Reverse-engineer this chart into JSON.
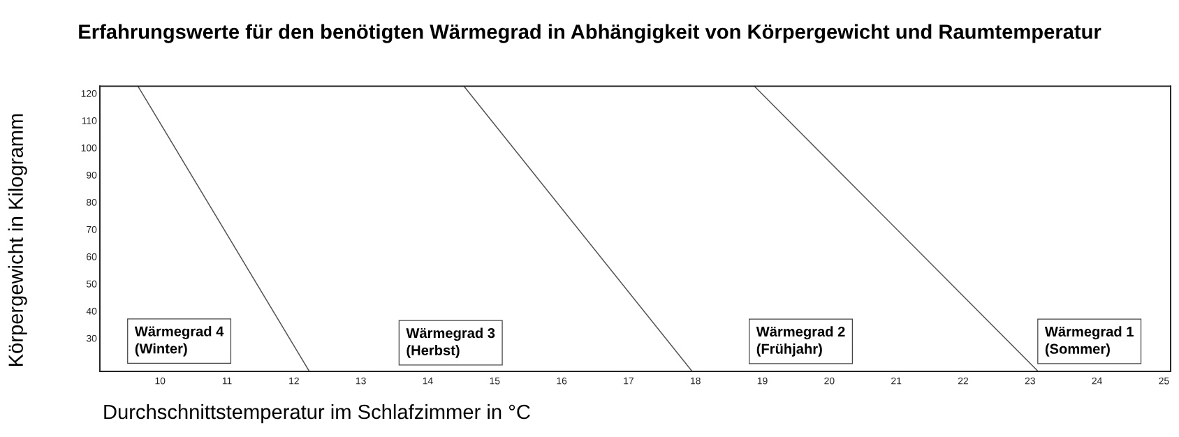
{
  "chart_data": {
    "type": "line",
    "title": "Erfahrungswerte für den benötigten Wärmegrad in Abhängigkeit von Körpergewicht und Raumtemperatur",
    "xlabel": "Durchschnittstemperatur im Schlafzimmer in °C",
    "ylabel": "Körpergewicht in Kilogramm",
    "series": [
      {
        "color": "#555555",
        "x": [
          9.67,
          12.23
        ],
        "values": [
          122.6,
          17.8
        ]
      },
      {
        "color": "#555555",
        "x": [
          14.54,
          17.95
        ],
        "values": [
          122.6,
          17.8
        ]
      },
      {
        "color": "#555555",
        "x": [
          18.88,
          23.12
        ],
        "values": [
          122.6,
          17.8
        ]
      }
    ],
    "xlim": [
      9.1,
      25.1
    ],
    "ylim": [
      17.8,
      122.6
    ],
    "xticks": [
      10,
      11,
      12,
      13,
      14,
      15,
      16,
      17,
      18,
      19,
      20,
      21,
      22,
      23,
      24,
      25
    ],
    "yticks": [
      30,
      40,
      50,
      60,
      70,
      80,
      90,
      100,
      110,
      120
    ],
    "line_style": "solid",
    "annotations": [
      "Wärmegrad 4\n(Winter)",
      "Wärmegrad 3\n(Herbst)",
      "Wärmegrad 2\n(Frühjahr)",
      "Wärmegrad 1\n(Sommer)"
    ]
  }
}
